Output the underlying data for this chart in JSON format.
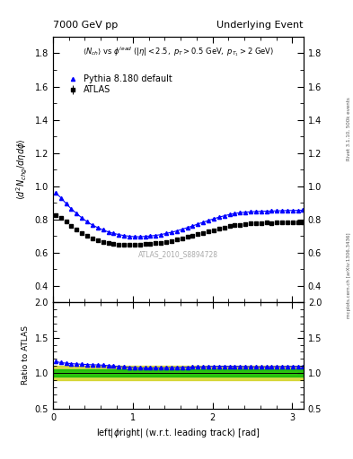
{
  "title_left": "7000 GeV pp",
  "title_right": "Underlying Event",
  "annotation": "ATLAS_2010_S8894728",
  "ylabel_main": "$\\langle d^2 N_{chg}/d\\eta d\\phi \\rangle$",
  "ylabel_ratio": "Ratio to ATLAS",
  "xlabel": "left|$\\phi$right| (w.r.t. leading track) [rad]",
  "right_label1": "Rivet 3.1.10, 500k events",
  "right_label2": "mcplots.cern.ch [arXiv:1306.3436]",
  "ylim_main": [
    0.3,
    1.9
  ],
  "ylim_ratio": [
    0.5,
    2.0
  ],
  "xmin": 0.0,
  "xmax": 3.14159,
  "atlas_label": "ATLAS",
  "pythia_label": "Pythia 8.180 default",
  "atlas_color": "#000000",
  "pythia_color": "#0000ff",
  "green_color": "#00bb00",
  "yellow_color": "#cccc00",
  "atlas_x": [
    0.033,
    0.099,
    0.165,
    0.231,
    0.297,
    0.363,
    0.429,
    0.495,
    0.561,
    0.628,
    0.694,
    0.76,
    0.826,
    0.892,
    0.958,
    1.024,
    1.09,
    1.156,
    1.222,
    1.288,
    1.354,
    1.421,
    1.487,
    1.553,
    1.619,
    1.685,
    1.751,
    1.817,
    1.883,
    1.949,
    2.015,
    2.081,
    2.147,
    2.214,
    2.28,
    2.346,
    2.412,
    2.478,
    2.544,
    2.61,
    2.676,
    2.742,
    2.808,
    2.874,
    2.94,
    3.006,
    3.072,
    3.13
  ],
  "atlas_y": [
    0.825,
    0.81,
    0.785,
    0.76,
    0.74,
    0.718,
    0.7,
    0.685,
    0.672,
    0.662,
    0.655,
    0.65,
    0.648,
    0.645,
    0.645,
    0.645,
    0.648,
    0.65,
    0.652,
    0.655,
    0.66,
    0.665,
    0.67,
    0.678,
    0.685,
    0.693,
    0.7,
    0.71,
    0.718,
    0.726,
    0.734,
    0.742,
    0.75,
    0.758,
    0.763,
    0.768,
    0.772,
    0.776,
    0.778,
    0.779,
    0.78,
    0.779,
    0.78,
    0.78,
    0.78,
    0.78,
    0.78,
    0.78
  ],
  "atlas_yerr": [
    0.012,
    0.012,
    0.01,
    0.01,
    0.01,
    0.01,
    0.009,
    0.009,
    0.008,
    0.008,
    0.008,
    0.007,
    0.007,
    0.007,
    0.007,
    0.007,
    0.007,
    0.007,
    0.007,
    0.007,
    0.007,
    0.007,
    0.007,
    0.007,
    0.007,
    0.007,
    0.007,
    0.007,
    0.008,
    0.008,
    0.008,
    0.008,
    0.008,
    0.008,
    0.008,
    0.008,
    0.008,
    0.008,
    0.008,
    0.008,
    0.009,
    0.009,
    0.009,
    0.009,
    0.01,
    0.01,
    0.01,
    0.01
  ],
  "pythia_x": [
    0.033,
    0.099,
    0.165,
    0.231,
    0.297,
    0.363,
    0.429,
    0.495,
    0.561,
    0.628,
    0.694,
    0.76,
    0.826,
    0.892,
    0.958,
    1.024,
    1.09,
    1.156,
    1.222,
    1.288,
    1.354,
    1.421,
    1.487,
    1.553,
    1.619,
    1.685,
    1.751,
    1.817,
    1.883,
    1.949,
    2.015,
    2.081,
    2.147,
    2.214,
    2.28,
    2.346,
    2.412,
    2.478,
    2.544,
    2.61,
    2.676,
    2.742,
    2.808,
    2.874,
    2.94,
    3.006,
    3.072,
    3.13
  ],
  "pythia_y": [
    0.96,
    0.93,
    0.895,
    0.862,
    0.835,
    0.808,
    0.785,
    0.765,
    0.75,
    0.736,
    0.724,
    0.715,
    0.708,
    0.702,
    0.698,
    0.695,
    0.695,
    0.697,
    0.7,
    0.703,
    0.708,
    0.715,
    0.722,
    0.73,
    0.74,
    0.75,
    0.76,
    0.772,
    0.782,
    0.793,
    0.803,
    0.813,
    0.821,
    0.829,
    0.835,
    0.84,
    0.843,
    0.845,
    0.847,
    0.848,
    0.849,
    0.85,
    0.851,
    0.852,
    0.853,
    0.853,
    0.854,
    0.855
  ],
  "ratio_green_low": 0.95,
  "ratio_green_high": 1.05,
  "ratio_yellow_low": 0.9,
  "ratio_yellow_high": 1.1
}
